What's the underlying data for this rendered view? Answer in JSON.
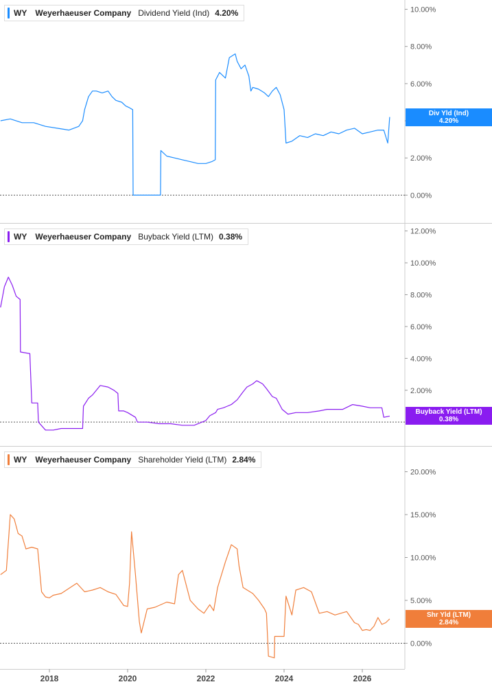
{
  "ticker": "WY",
  "company": "Weyerhaeuser Company",
  "x_ticks": [
    "2018",
    "2020",
    "2022",
    "2024",
    "2026"
  ],
  "chart_data": [
    {
      "type": "line",
      "metric": "Dividend Yield (Ind)",
      "current_value": "4.20%",
      "flag_label": "Div Yld (Ind)",
      "color": "#1a8cff",
      "ylim": [
        -1.5,
        10.5
      ],
      "y_ticks": [
        "0.00%",
        "2.00%",
        "4.00%",
        "6.00%",
        "8.00%",
        "10.00%"
      ],
      "y_tick_values": [
        0,
        2,
        4,
        6,
        8,
        10
      ],
      "baseline": 0,
      "series": [
        {
          "x": [
            2016.75,
            2017.0,
            2017.3,
            2017.6,
            2017.9,
            2018.2,
            2018.5,
            2018.75,
            2018.85,
            2018.9,
            2019.0,
            2019.1,
            2019.2,
            2019.35,
            2019.5,
            2019.6,
            2019.7,
            2019.85,
            2019.95,
            2020.05,
            2020.13,
            2020.14,
            2020.3,
            2020.5,
            2020.7,
            2020.84,
            2020.85,
            2021.0,
            2021.2,
            2021.4,
            2021.6,
            2021.8,
            2022.0,
            2022.15,
            2022.24,
            2022.25,
            2022.35,
            2022.5,
            2022.6,
            2022.75,
            2022.8,
            2022.9,
            2023.0,
            2023.1,
            2023.15,
            2023.2,
            2023.35,
            2023.5,
            2023.6,
            2023.7,
            2023.8,
            2023.9,
            2024.0,
            2024.05,
            2024.2,
            2024.4,
            2024.6,
            2024.8,
            2025.0,
            2025.2,
            2025.4,
            2025.6,
            2025.8,
            2026.0,
            2026.2,
            2026.4,
            2026.55,
            2026.65,
            2026.7
          ],
          "y": [
            4.0,
            4.1,
            3.9,
            3.9,
            3.7,
            3.6,
            3.5,
            3.7,
            4.0,
            4.6,
            5.3,
            5.6,
            5.6,
            5.5,
            5.6,
            5.3,
            5.1,
            5.0,
            4.8,
            4.7,
            4.6,
            0.0,
            0.0,
            0.0,
            0.0,
            0.0,
            2.4,
            2.1,
            2.0,
            1.9,
            1.8,
            1.7,
            1.7,
            1.8,
            1.9,
            6.2,
            6.6,
            6.3,
            7.4,
            7.6,
            7.2,
            6.8,
            7.0,
            6.4,
            5.6,
            5.8,
            5.7,
            5.5,
            5.3,
            5.6,
            5.8,
            5.4,
            4.6,
            2.8,
            2.9,
            3.2,
            3.1,
            3.3,
            3.2,
            3.4,
            3.3,
            3.5,
            3.6,
            3.3,
            3.4,
            3.5,
            3.5,
            2.8,
            4.2
          ]
        }
      ]
    },
    {
      "type": "line",
      "metric": "Buyback Yield (LTM)",
      "current_value": "0.38%",
      "flag_label": "Buyback Yield (LTM)",
      "color": "#8a1cf0",
      "ylim": [
        -1.5,
        12.5
      ],
      "y_ticks": [
        "2.00%",
        "4.00%",
        "6.00%",
        "8.00%",
        "10.00%",
        "12.00%"
      ],
      "y_tick_values": [
        2,
        4,
        6,
        8,
        10,
        12
      ],
      "baseline": 0,
      "series": [
        {
          "x": [
            2016.75,
            2016.85,
            2016.95,
            2017.05,
            2017.15,
            2017.25,
            2017.26,
            2017.5,
            2017.55,
            2017.7,
            2017.72,
            2017.9,
            2018.1,
            2018.3,
            2018.5,
            2018.65,
            2018.85,
            2018.87,
            2019.0,
            2019.1,
            2019.2,
            2019.3,
            2019.5,
            2019.65,
            2019.75,
            2019.77,
            2019.9,
            2020.0,
            2020.2,
            2020.25,
            2020.5,
            2020.8,
            2021.1,
            2021.4,
            2021.7,
            2022.0,
            2022.1,
            2022.25,
            2022.3,
            2022.45,
            2022.55,
            2022.65,
            2022.8,
            2022.95,
            2023.05,
            2023.2,
            2023.3,
            2023.45,
            2023.55,
            2023.7,
            2023.8,
            2023.95,
            2024.1,
            2024.3,
            2024.6,
            2024.9,
            2025.1,
            2025.3,
            2025.5,
            2025.75,
            2026.0,
            2026.2,
            2026.4,
            2026.5,
            2026.55,
            2026.7
          ],
          "y": [
            7.2,
            8.5,
            9.1,
            8.6,
            7.9,
            7.7,
            4.4,
            4.3,
            1.2,
            1.2,
            0.0,
            -0.5,
            -0.5,
            -0.4,
            -0.4,
            -0.4,
            -0.4,
            1.0,
            1.5,
            1.7,
            2.0,
            2.3,
            2.2,
            2.0,
            1.8,
            0.7,
            0.7,
            0.6,
            0.3,
            0.0,
            0.0,
            -0.1,
            -0.1,
            -0.2,
            -0.2,
            0.1,
            0.4,
            0.6,
            0.8,
            0.9,
            1.0,
            1.1,
            1.4,
            1.9,
            2.2,
            2.4,
            2.6,
            2.4,
            2.1,
            1.6,
            1.5,
            0.8,
            0.5,
            0.6,
            0.6,
            0.7,
            0.8,
            0.8,
            0.8,
            1.1,
            1.0,
            0.9,
            0.9,
            0.9,
            0.3,
            0.38
          ]
        }
      ]
    },
    {
      "type": "line",
      "metric": "Shareholder Yield (LTM)",
      "current_value": "2.84%",
      "flag_label": "Shr Yld (LTM)",
      "color": "#f07e3a",
      "ylim": [
        -3,
        23
      ],
      "y_ticks": [
        "0.00%",
        "5.00%",
        "10.00%",
        "15.00%",
        "20.00%"
      ],
      "y_tick_values": [
        0,
        5,
        10,
        15,
        20
      ],
      "baseline": 0,
      "series": [
        {
          "x": [
            2016.75,
            2016.9,
            2017.0,
            2017.1,
            2017.2,
            2017.3,
            2017.4,
            2017.55,
            2017.7,
            2017.8,
            2017.9,
            2018.0,
            2018.1,
            2018.3,
            2018.5,
            2018.7,
            2018.9,
            2019.1,
            2019.3,
            2019.5,
            2019.7,
            2019.9,
            2020.0,
            2020.05,
            2020.1,
            2020.14,
            2020.2,
            2020.3,
            2020.35,
            2020.5,
            2020.7,
            2021.0,
            2021.2,
            2021.3,
            2021.4,
            2021.6,
            2021.8,
            2021.95,
            2022.1,
            2022.2,
            2022.3,
            2022.5,
            2022.65,
            2022.8,
            2022.85,
            2022.95,
            2023.2,
            2023.35,
            2023.5,
            2023.55,
            2023.6,
            2023.75,
            2023.76,
            2024.0,
            2024.05,
            2024.2,
            2024.3,
            2024.5,
            2024.7,
            2024.9,
            2025.1,
            2025.3,
            2025.6,
            2025.8,
            2025.9,
            2026.0,
            2026.1,
            2026.2,
            2026.3,
            2026.4,
            2026.5,
            2026.6,
            2026.7
          ],
          "y": [
            8.0,
            8.5,
            15.0,
            14.5,
            12.8,
            12.5,
            11.0,
            11.2,
            11.0,
            6.0,
            5.4,
            5.3,
            5.6,
            5.8,
            6.4,
            7.0,
            6.0,
            6.2,
            6.5,
            6.0,
            5.7,
            4.4,
            4.3,
            7.0,
            13.0,
            11.0,
            8.0,
            2.5,
            1.2,
            4.0,
            4.2,
            4.8,
            4.6,
            8.0,
            8.5,
            5.0,
            4.0,
            3.5,
            4.5,
            3.8,
            6.5,
            9.5,
            11.5,
            11.0,
            9.0,
            6.5,
            5.8,
            5.0,
            4.0,
            3.5,
            -1.5,
            -1.7,
            0.8,
            0.8,
            5.5,
            3.3,
            6.2,
            6.5,
            6.0,
            3.5,
            3.7,
            3.3,
            3.7,
            2.4,
            2.2,
            1.5,
            1.6,
            1.5,
            2.0,
            3.0,
            2.2,
            2.4,
            2.84
          ]
        }
      ]
    }
  ]
}
